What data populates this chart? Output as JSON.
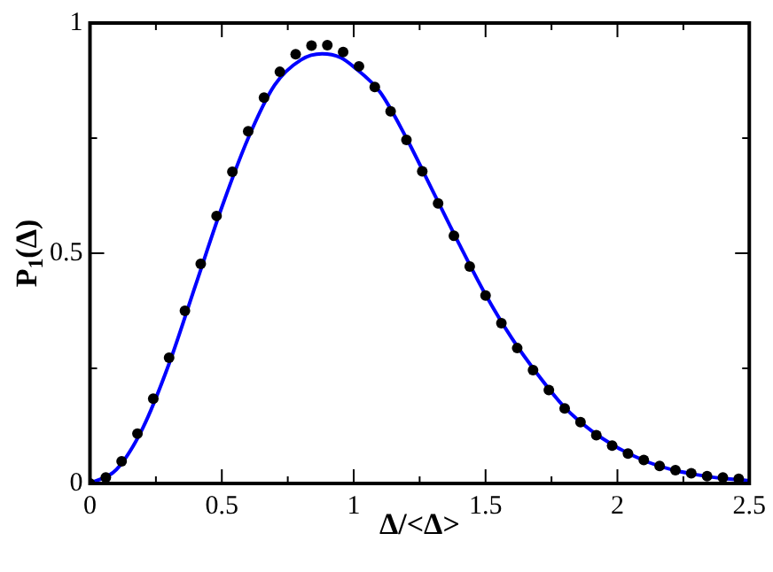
{
  "chart_data": {
    "type": "scatter",
    "xlabel": "Δ/<Δ>",
    "ylabel": "P$_{1}$(Δ)",
    "xlim": [
      0,
      2.5
    ],
    "ylim": [
      0,
      1
    ],
    "xticks": [
      0,
      {
        "value": 0.25,
        "label": null
      },
      0.5,
      {
        "value": 0.75,
        "label": null
      },
      1,
      {
        "value": 1.25,
        "label": null
      },
      1.5,
      {
        "value": 1.75,
        "label": null
      },
      2,
      {
        "value": 2.25,
        "label": null
      },
      2.5
    ],
    "yticks": [
      0,
      {
        "value": 0.25,
        "label": null
      },
      0.5,
      {
        "value": 0.75,
        "label": null
      },
      1
    ],
    "grid": false,
    "legend": false,
    "series": [
      {
        "color": "#000000",
        "marker": "circle",
        "x": [
          0,
          0.06,
          0.12,
          0.18,
          0.24,
          0.3,
          0.36,
          0.42,
          0.48,
          0.54,
          0.6,
          0.66,
          0.72,
          0.78,
          0.84,
          0.9,
          0.96,
          1.02,
          1.08,
          1.14,
          1.2,
          1.26,
          1.32,
          1.38,
          1.44,
          1.5,
          1.56,
          1.62,
          1.68,
          1.74,
          1.8,
          1.86,
          1.92,
          1.98,
          2.04,
          2.1,
          2.16,
          2.22,
          2.28,
          2.34,
          2.4,
          2.46
        ],
        "values": [
          0,
          0.013,
          0.048,
          0.108,
          0.184,
          0.273,
          0.375,
          0.477,
          0.581,
          0.677,
          0.765,
          0.838,
          0.894,
          0.932,
          0.951,
          0.952,
          0.937,
          0.906,
          0.861,
          0.808,
          0.746,
          0.678,
          0.608,
          0.538,
          0.471,
          0.408,
          0.348,
          0.294,
          0.246,
          0.203,
          0.163,
          0.133,
          0.105,
          0.082,
          0.065,
          0.051,
          0.038,
          0.029,
          0.022,
          0.016,
          0.013,
          0.01
        ]
      },
      {
        "type": "line",
        "color": "#0000ff",
        "marker": "none",
        "line_style": "solid",
        "x": [
          0,
          0.1,
          0.2,
          0.3,
          0.4,
          0.5,
          0.6,
          0.7,
          0.8,
          0.88,
          0.95,
          1.0,
          1.1,
          1.2,
          1.3,
          1.4,
          1.5,
          1.6,
          1.7,
          1.8,
          1.9,
          2.0,
          2.1,
          2.2,
          2.3,
          2.4,
          2.5
        ],
        "values": [
          0,
          0.03,
          0.12,
          0.26,
          0.43,
          0.6,
          0.75,
          0.865,
          0.92,
          0.933,
          0.925,
          0.905,
          0.85,
          0.75,
          0.635,
          0.52,
          0.41,
          0.315,
          0.235,
          0.165,
          0.115,
          0.078,
          0.05,
          0.031,
          0.019,
          0.011,
          0.006
        ]
      }
    ]
  }
}
